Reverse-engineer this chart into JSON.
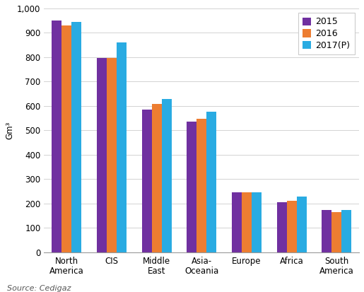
{
  "categories": [
    "North\nAmerica",
    "CIS",
    "Middle\nEast",
    "Asia-\nOceania",
    "Europe",
    "Africa",
    "South\nAmerica"
  ],
  "series": {
    "2015": [
      950,
      797,
      585,
      535,
      247,
      205,
      175
    ],
    "2016": [
      930,
      797,
      608,
      549,
      247,
      212,
      165
    ],
    "2017(P)": [
      945,
      862,
      630,
      578,
      247,
      228,
      175
    ]
  },
  "colors": {
    "2015": "#7030a0",
    "2016": "#ed7d31",
    "2017(P)": "#29abe2"
  },
  "ylabel": "Gm³",
  "ylim": [
    0,
    1000
  ],
  "yticks": [
    0,
    100,
    200,
    300,
    400,
    500,
    600,
    700,
    800,
    900,
    1000
  ],
  "ytick_labels": [
    "0",
    "100",
    "200",
    "300",
    "400",
    "500",
    "600",
    "700",
    "800",
    "900",
    "1,000"
  ],
  "legend_labels": [
    "2015",
    "2016",
    "2017(P)"
  ],
  "source_text": "Source: Cedigaz",
  "bar_width": 0.22,
  "background_color": "#ffffff",
  "grid_color": "#cccccc",
  "axis_fontsize": 8.5,
  "legend_fontsize": 9,
  "source_fontsize": 8
}
